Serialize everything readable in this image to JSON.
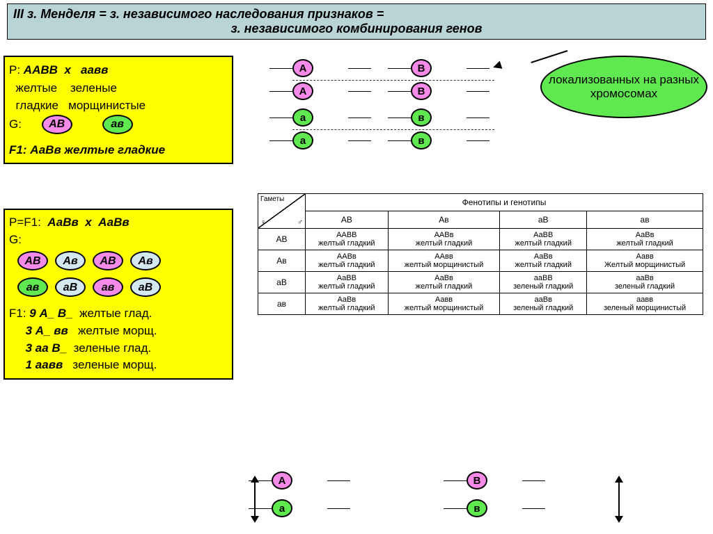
{
  "header": {
    "line1": "III з. Менделя = з. независимого наследования признаков =",
    "line2": "з. независимого комбинирования генов"
  },
  "badge": "локализованных на разных хромосомах",
  "cross1": {
    "p_label": "P:",
    "p1": "ААВВ",
    "x": "х",
    "p2": "аавв",
    "ph1a": "желтые",
    "ph1b": "зеленые",
    "ph2a": "гладкие",
    "ph2b": "морщинистые",
    "g_label": "G:",
    "gam1": "АВ",
    "gam2": "ав",
    "f1": "F1: АаВв желтые гладкие"
  },
  "cross2": {
    "p_label": "P=F1:",
    "p1": "АаВв",
    "x": "х",
    "p2": "АаВв",
    "g_label": "G:",
    "row1": [
      "АВ",
      "Ав",
      "АВ",
      "Ав"
    ],
    "row2": [
      "ав",
      "аВ",
      "ав",
      "аВ"
    ],
    "f_label": "F1:",
    "r1": "9 А_ В_",
    "r1p": "желтые глад.",
    "r2": "3 А_ вв",
    "r2p": "желтые морщ.",
    "r3": "3 аа В_",
    "r3p": "зеленые глад.",
    "r4": "1 аавв",
    "r4p": "зеленые морщ."
  },
  "chroms_top": [
    {
      "a": "А",
      "b": "В",
      "color": "pink"
    },
    {
      "a": "А",
      "b": "В",
      "color": "pink"
    },
    {
      "a": "а",
      "b": "в",
      "color": "green"
    },
    {
      "a": "а",
      "b": "в",
      "color": "green"
    }
  ],
  "chroms_bottom": [
    {
      "a": "А",
      "b": "В",
      "ca": "pink",
      "cb": "pink"
    },
    {
      "a": "а",
      "b": "в",
      "ca": "green",
      "cb": "green"
    }
  ],
  "punnett": {
    "corner_top": "Гаметы",
    "corner_m": "♂",
    "corner_f": "♀",
    "header_span": "Фенотипы и генотипы",
    "cols": [
      "АВ",
      "Ав",
      "аВ",
      "ав"
    ],
    "rows": [
      "АВ",
      "Ав",
      "аВ",
      "ав"
    ],
    "cells": [
      [
        [
          "ААВВ",
          "желтый гладкий"
        ],
        [
          "ААВв",
          "желтый гладкий"
        ],
        [
          "АаВВ",
          "желтый гладкий"
        ],
        [
          "АаВв",
          "желтый гладкий"
        ]
      ],
      [
        [
          "ААВв",
          "желтый гладкий"
        ],
        [
          "ААвв",
          "желтый морщинистый"
        ],
        [
          "АаВв",
          "желтый гладкий"
        ],
        [
          "Аавв",
          "Желтый морщинистый"
        ]
      ],
      [
        [
          "АаВВ",
          "желтый гладкий"
        ],
        [
          "АаВв",
          "желтый гладкий"
        ],
        [
          "ааВВ",
          "зеленый гладкий"
        ],
        [
          "ааВв",
          "зеленый гладкий"
        ]
      ],
      [
        [
          "АаВв",
          "желтый гладкий"
        ],
        [
          "Аавв",
          "желтый морщинистый"
        ],
        [
          "ааВв",
          "зеленый гладкий"
        ],
        [
          "аавв",
          "зеленый морщинистый"
        ]
      ]
    ]
  },
  "colors": {
    "header_bg": "#b8d4d4",
    "box_bg": "#ffff00",
    "pink": "#f58ae8",
    "green": "#5fe84f",
    "lightblue": "#d4e8f0"
  }
}
